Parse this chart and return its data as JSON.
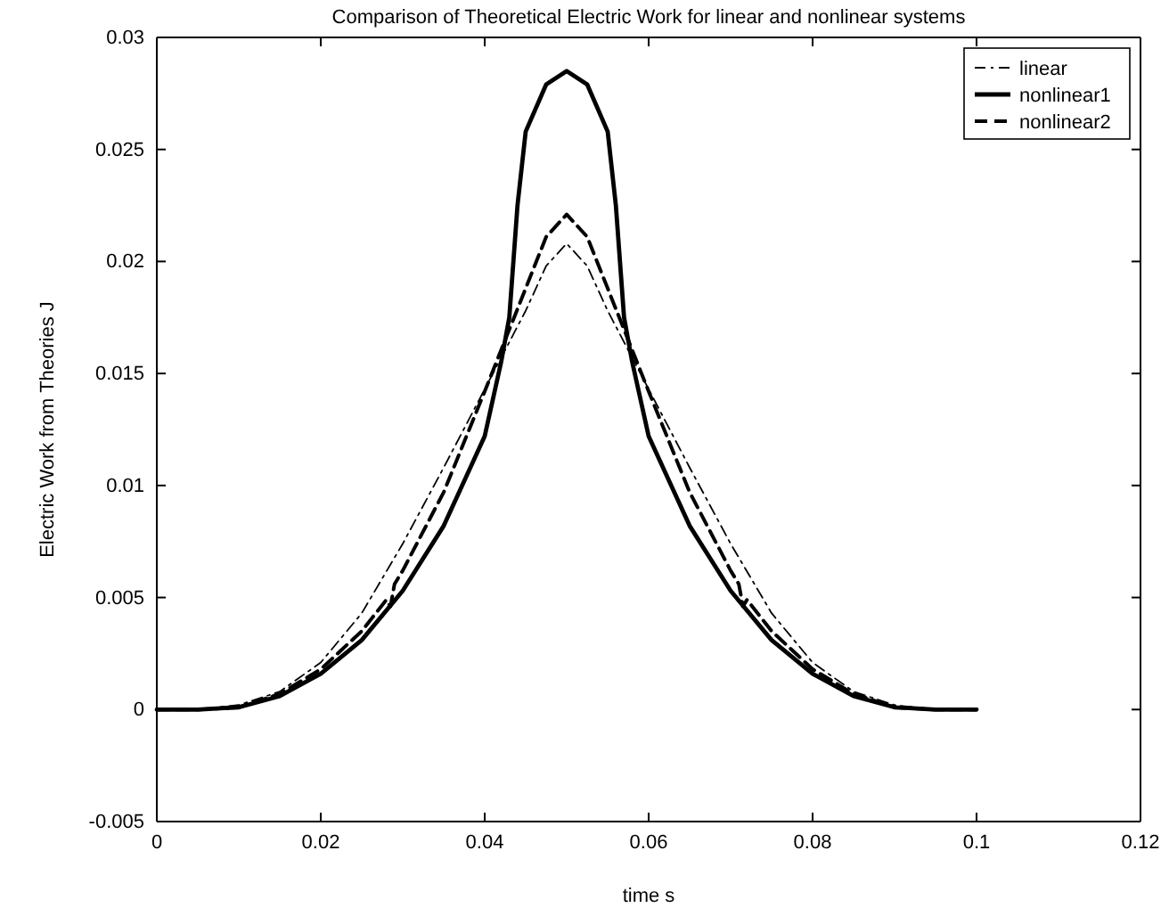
{
  "chart_data": {
    "type": "line",
    "title": "Comparison of Theoretical Electric Work for linear and nonlinear systems",
    "xlabel": "time s",
    "ylabel": "Electric Work from Theories J",
    "xlim": [
      0,
      0.12
    ],
    "xticks": [
      0,
      0.02,
      0.04,
      0.06,
      0.08,
      0.1,
      0.12
    ],
    "ylim": [
      -0.005,
      0.03
    ],
    "yticks": [
      -0.005,
      0,
      0.005,
      0.01,
      0.015,
      0.02,
      0.025,
      0.03
    ],
    "grid": false,
    "legend": "top right",
    "marker": "none",
    "series": [
      {
        "name": "linear",
        "color": "#000000",
        "line_style": "dashdot",
        "x": [
          0,
          0.005,
          0.01,
          0.015,
          0.02,
          0.025,
          0.03,
          0.035,
          0.04,
          0.045,
          0.0475,
          0.05,
          0.0525,
          0.055,
          0.06,
          0.065,
          0.07,
          0.075,
          0.08,
          0.085,
          0.09,
          0.095,
          0.1
        ],
        "values": [
          0,
          0,
          0.0002,
          0.0008,
          0.0021,
          0.0043,
          0.0074,
          0.0108,
          0.0143,
          0.0178,
          0.0198,
          0.0208,
          0.0198,
          0.0178,
          0.0143,
          0.0108,
          0.0074,
          0.0043,
          0.0021,
          0.0008,
          0.0002,
          0,
          0
        ]
      },
      {
        "name": "nonlinear1",
        "color": "#000000",
        "line_style": "solid",
        "x": [
          0,
          0.005,
          0.01,
          0.015,
          0.02,
          0.025,
          0.03,
          0.035,
          0.04,
          0.042,
          0.043,
          0.044,
          0.045,
          0.0475,
          0.05,
          0.0525,
          0.055,
          0.056,
          0.057,
          0.058,
          0.06,
          0.065,
          0.07,
          0.075,
          0.08,
          0.085,
          0.09,
          0.095,
          0.1
        ],
        "values": [
          0,
          0,
          0.0001,
          0.0006,
          0.0016,
          0.0031,
          0.0053,
          0.0082,
          0.0122,
          0.0155,
          0.0175,
          0.0225,
          0.0258,
          0.0279,
          0.0285,
          0.0279,
          0.0258,
          0.0225,
          0.0175,
          0.0155,
          0.0122,
          0.0082,
          0.0053,
          0.0031,
          0.0016,
          0.0006,
          0.0001,
          0,
          0
        ]
      },
      {
        "name": "nonlinear2",
        "color": "#000000",
        "line_style": "dashed",
        "x": [
          0,
          0.005,
          0.01,
          0.015,
          0.02,
          0.025,
          0.028,
          0.0285,
          0.029,
          0.03,
          0.035,
          0.04,
          0.045,
          0.0475,
          0.05,
          0.0525,
          0.055,
          0.06,
          0.065,
          0.07,
          0.071,
          0.0715,
          0.072,
          0.075,
          0.08,
          0.085,
          0.09,
          0.095,
          0.1
        ],
        "values": [
          0,
          0,
          0.0001,
          0.0007,
          0.0018,
          0.0035,
          0.0049,
          0.0046,
          0.0056,
          0.0062,
          0.0097,
          0.0142,
          0.0188,
          0.0211,
          0.0221,
          0.0211,
          0.0188,
          0.0142,
          0.0097,
          0.0062,
          0.0056,
          0.0046,
          0.0049,
          0.0035,
          0.0018,
          0.0007,
          0.0001,
          0,
          0
        ]
      }
    ]
  }
}
